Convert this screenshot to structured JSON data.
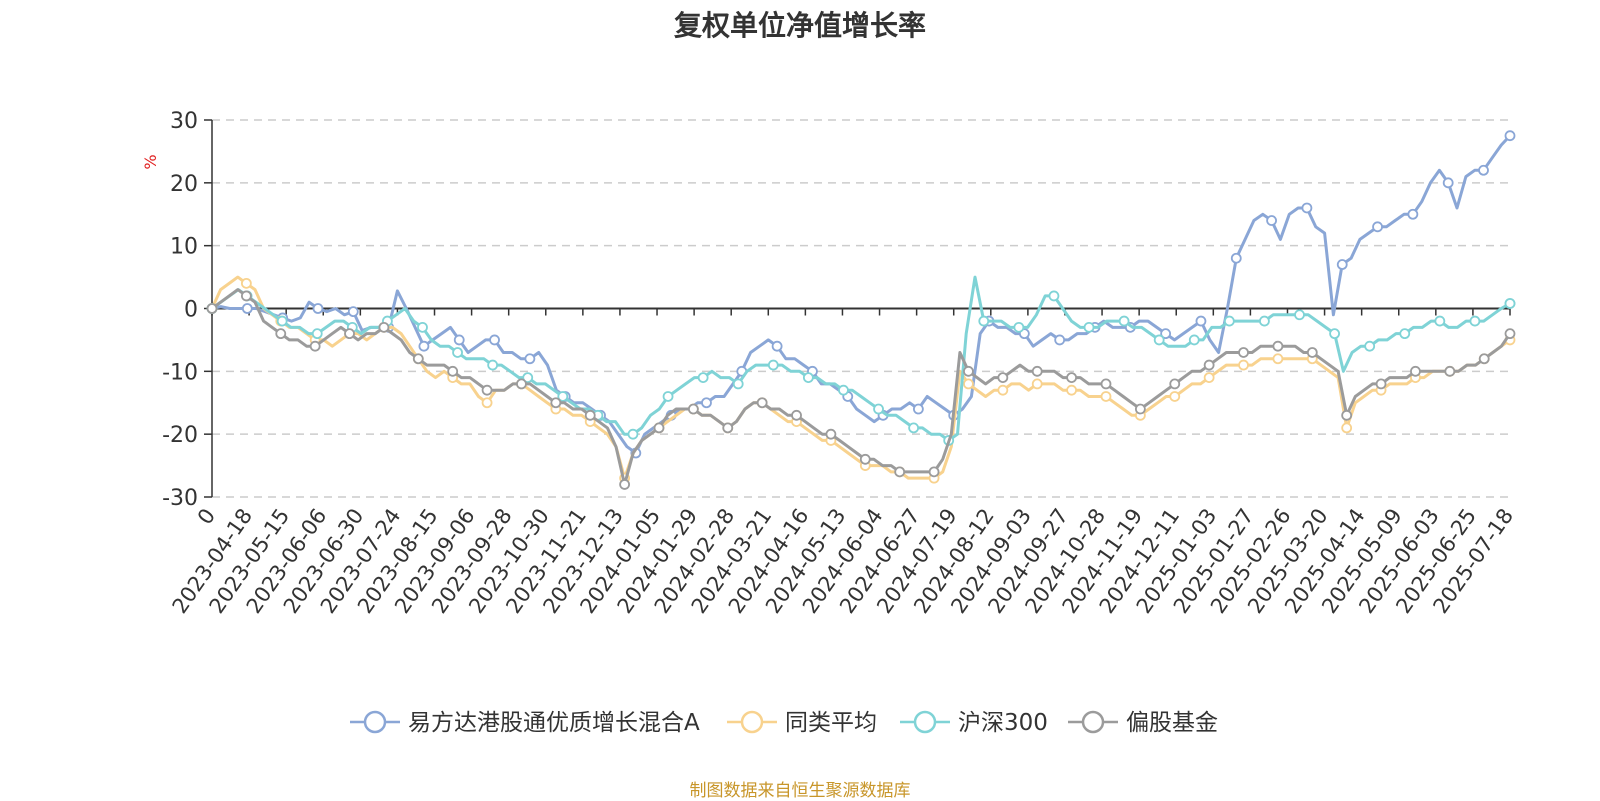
{
  "source_note": "制图数据来自恒生聚源数据库",
  "colors": {
    "fund": "#8aa6d6",
    "peer_avg": "#f8d28e",
    "hs300": "#7fd3d6",
    "equity_fund": "#9b9b9b",
    "unit_label": "#e02020",
    "source": "#c8962a"
  },
  "chart_data": {
    "type": "line",
    "title": "复权单位净值增长率",
    "ylabel": "%",
    "ylim": [
      -30,
      30
    ],
    "yticks": [
      -30,
      -20,
      -10,
      0,
      10,
      20,
      30
    ],
    "grid": true,
    "legend_position": "bottom",
    "x_tick_labels": [
      "0",
      "2023-04-18",
      "2023-05-15",
      "2023-06-06",
      "2023-06-30",
      "2023-07-24",
      "2023-08-15",
      "2023-09-06",
      "2023-09-28",
      "2023-10-30",
      "2023-11-21",
      "2023-12-13",
      "2024-01-05",
      "2024-01-29",
      "2024-02-28",
      "2024-03-21",
      "2024-04-16",
      "2024-05-13",
      "2024-06-04",
      "2024-06-27",
      "2024-07-19",
      "2024-08-12",
      "2024-09-03",
      "2024-09-27",
      "2024-10-28",
      "2024-11-19",
      "2024-12-11",
      "2025-01-03",
      "2025-01-27",
      "2025-02-26",
      "2025-03-20",
      "2025-04-14",
      "2025-05-09",
      "2025-06-03",
      "2025-06-25",
      "2025-07-18"
    ],
    "series": [
      {
        "name": "易方达港股通优质增长混合A",
        "color_key": "fund",
        "values": [
          0,
          0.3,
          0,
          0,
          0,
          0,
          -0.5,
          -1,
          -1.5,
          -2,
          -1.5,
          1,
          0,
          -0.5,
          0,
          -1,
          -0.5,
          -3.5,
          -3,
          -3,
          -3,
          2.8,
          0,
          -3,
          -6,
          -5,
          -4,
          -3,
          -5,
          -7,
          -6,
          -5,
          -5,
          -7,
          -7,
          -8,
          -8,
          -7,
          -9,
          -13,
          -14,
          -15,
          -15,
          -16,
          -17,
          -18,
          -20,
          -22,
          -23,
          -20,
          -19,
          -18,
          -17,
          -16,
          -16,
          -15,
          -15,
          -14,
          -14,
          -12,
          -10,
          -7,
          -6,
          -5,
          -6,
          -8,
          -8,
          -9,
          -10,
          -12,
          -12,
          -13,
          -14,
          -16,
          -17,
          -18,
          -17,
          -16,
          -16,
          -15,
          -16,
          -14,
          -15,
          -16,
          -17,
          -16,
          -14,
          -4,
          -2,
          -3,
          -3,
          -4,
          -4,
          -6,
          -5,
          -4,
          -5,
          -5,
          -4,
          -4,
          -3,
          -2,
          -3,
          -3,
          -3,
          -2,
          -2,
          -3,
          -4,
          -5,
          -4,
          -3,
          -2,
          -5,
          -7,
          0,
          8,
          11,
          14,
          15,
          14,
          11,
          15,
          16,
          16,
          13,
          12,
          -1,
          7,
          8,
          11,
          12,
          13,
          13,
          14,
          15,
          15,
          17,
          20,
          22,
          20,
          16,
          21,
          22,
          22,
          24,
          26,
          27.5
        ]
      },
      {
        "name": "同类平均",
        "color_key": "peer_avg",
        "values": [
          0,
          3,
          4,
          5,
          4,
          3,
          0,
          -1,
          -2,
          -3,
          -3,
          -4,
          -5,
          -5,
          -6,
          -5,
          -4,
          -4,
          -5,
          -4,
          -3,
          -3,
          -4,
          -6,
          -8,
          -10,
          -11,
          -10,
          -11,
          -12,
          -12,
          -14,
          -15,
          -13,
          -13,
          -12,
          -12,
          -13,
          -14,
          -15,
          -16,
          -16,
          -17,
          -17,
          -18,
          -19,
          -20,
          -22,
          -27,
          -23,
          -21,
          -20,
          -19,
          -18,
          -17,
          -16,
          -16,
          -17,
          -17,
          -18,
          -19,
          -18,
          -16,
          -15,
          -15,
          -16,
          -17,
          -18,
          -18,
          -19,
          -20,
          -21,
          -21,
          -22,
          -23,
          -24,
          -25,
          -25,
          -25,
          -26,
          -26,
          -27,
          -27,
          -27,
          -27,
          -26,
          -22,
          -10,
          -12,
          -13,
          -14,
          -13,
          -13,
          -12,
          -12,
          -13,
          -12,
          -12,
          -12,
          -13,
          -13,
          -13,
          -14,
          -14,
          -14,
          -15,
          -16,
          -17,
          -17,
          -16,
          -15,
          -14,
          -14,
          -13,
          -12,
          -12,
          -11,
          -10,
          -9,
          -9,
          -9,
          -9,
          -8,
          -8,
          -8,
          -8,
          -8,
          -8,
          -8,
          -9,
          -10,
          -11,
          -19,
          -15,
          -14,
          -13,
          -13,
          -12,
          -12,
          -12,
          -11,
          -11,
          -10,
          -10,
          -10,
          -10,
          -9,
          -9,
          -8,
          -7,
          -6,
          -5
        ]
      },
      {
        "name": "沪深300",
        "color_key": "hs300",
        "values": [
          0,
          1,
          2,
          3,
          2,
          1,
          0,
          -1,
          -2,
          -3,
          -3,
          -4,
          -4,
          -3,
          -2,
          -2,
          -3,
          -4,
          -3,
          -3,
          -2,
          -1,
          0,
          -2,
          -3,
          -5,
          -6,
          -6,
          -7,
          -8,
          -8,
          -8,
          -9,
          -9,
          -10,
          -11,
          -11,
          -12,
          -12,
          -13,
          -14,
          -15,
          -16,
          -16,
          -17,
          -18,
          -18,
          -20,
          -20,
          -19,
          -17,
          -16,
          -14,
          -13,
          -12,
          -11,
          -11,
          -10,
          -11,
          -11,
          -12,
          -10,
          -9,
          -9,
          -9,
          -9,
          -10,
          -10,
          -11,
          -11,
          -12,
          -12,
          -13,
          -13,
          -14,
          -15,
          -16,
          -17,
          -17,
          -18,
          -19,
          -19,
          -20,
          -20,
          -21,
          -20,
          -4,
          5,
          -2,
          -2,
          -2,
          -3,
          -3,
          -3,
          -1,
          2,
          2,
          0,
          -2,
          -3,
          -3,
          -3,
          -2,
          -2,
          -2,
          -3,
          -3,
          -4,
          -5,
          -6,
          -6,
          -6,
          -5,
          -5,
          -3,
          -3,
          -2,
          -2,
          -2,
          -2,
          -2,
          -1,
          -1,
          -1,
          -1,
          -1,
          -2,
          -3,
          -4,
          -10,
          -7,
          -6,
          -6,
          -5,
          -5,
          -4,
          -4,
          -3,
          -3,
          -2,
          -2,
          -3,
          -3,
          -2,
          -2,
          -2,
          -1,
          0,
          0.8
        ]
      },
      {
        "name": "偏股基金",
        "color_key": "equity_fund",
        "values": [
          0,
          1,
          2,
          3,
          2,
          1,
          -2,
          -3,
          -4,
          -5,
          -5,
          -6,
          -6,
          -5,
          -4,
          -3,
          -4,
          -5,
          -4,
          -4,
          -3,
          -4,
          -5,
          -7,
          -8,
          -9,
          -9,
          -9,
          -10,
          -11,
          -11,
          -12,
          -13,
          -13,
          -13,
          -12,
          -12,
          -12,
          -13,
          -14,
          -15,
          -15,
          -16,
          -16,
          -17,
          -18,
          -19,
          -22,
          -28,
          -23,
          -21,
          -20,
          -19,
          -17,
          -16,
          -16,
          -16,
          -17,
          -17,
          -18,
          -19,
          -18,
          -16,
          -15,
          -15,
          -16,
          -16,
          -17,
          -17,
          -18,
          -19,
          -20,
          -20,
          -21,
          -22,
          -23,
          -24,
          -24,
          -25,
          -25,
          -26,
          -26,
          -26,
          -26,
          -26,
          -24,
          -20,
          -7,
          -10,
          -11,
          -12,
          -11,
          -11,
          -10,
          -9,
          -10,
          -10,
          -10,
          -10,
          -11,
          -11,
          -11,
          -12,
          -12,
          -12,
          -13,
          -14,
          -15,
          -16,
          -15,
          -14,
          -13,
          -12,
          -11,
          -10,
          -10,
          -9,
          -8,
          -7,
          -7,
          -7,
          -7,
          -6,
          -6,
          -6,
          -6,
          -6,
          -7,
          -7,
          -8,
          -9,
          -10,
          -17,
          -14,
          -13,
          -12,
          -12,
          -11,
          -11,
          -11,
          -10,
          -10,
          -10,
          -10,
          -10,
          -10,
          -9,
          -9,
          -8,
          -7,
          -6,
          -4
        ]
      }
    ]
  }
}
